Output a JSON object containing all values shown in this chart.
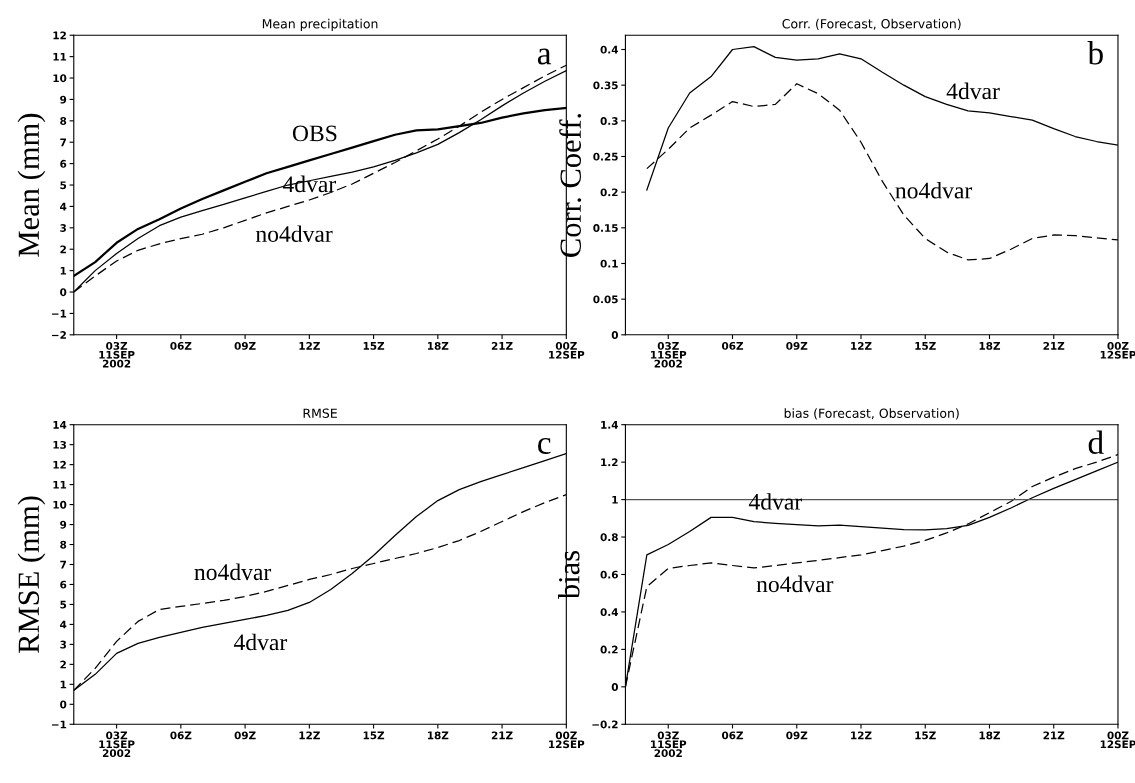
{
  "chart_data": [
    {
      "type": "line",
      "title": "Mean precipitation",
      "ylabel": "Mean (mm)",
      "xlim": [
        1,
        24
      ],
      "ylim": [
        -2,
        12
      ],
      "xticks": [
        {
          "value": 3,
          "label": "03Z\n11SEP\n2002"
        },
        {
          "value": 6,
          "label": "06Z"
        },
        {
          "value": 9,
          "label": "09Z"
        },
        {
          "value": 12,
          "label": "12Z"
        },
        {
          "value": 15,
          "label": "15Z"
        },
        {
          "value": 18,
          "label": "18Z"
        },
        {
          "value": 21,
          "label": "21Z"
        },
        {
          "value": 24,
          "label": "00Z\n12SEP"
        }
      ],
      "yticks": [
        {
          "value": -2,
          "label": "−2"
        },
        {
          "value": -1,
          "label": "−1"
        },
        0,
        1,
        2,
        3,
        4,
        5,
        6,
        7,
        8,
        9,
        10,
        11,
        12
      ],
      "x": [
        1,
        2,
        3,
        4,
        5,
        6,
        7,
        8,
        9,
        10,
        11,
        12,
        13,
        14,
        15,
        16,
        17,
        18,
        19,
        20,
        21,
        22,
        23,
        24
      ],
      "series": [
        {
          "name": "OBS",
          "color": "#000000",
          "line_style": "solid",
          "values": [
            0.75,
            1.4,
            2.3,
            2.95,
            3.4,
            3.9,
            4.35,
            4.75,
            5.15,
            5.55,
            5.85,
            6.15,
            6.45,
            6.75,
            7.05,
            7.35,
            7.55,
            7.6,
            7.75,
            7.9,
            8.15,
            8.35,
            8.5,
            8.6
          ]
        },
        {
          "name": "4dvar",
          "color": "#000000",
          "line_style": "solid",
          "values": [
            0,
            1.0,
            1.8,
            2.5,
            3.1,
            3.5,
            3.8,
            4.1,
            4.4,
            4.7,
            5.0,
            5.2,
            5.4,
            5.6,
            5.85,
            6.15,
            6.5,
            6.9,
            7.45,
            8.05,
            8.7,
            9.3,
            9.85,
            10.35
          ]
        },
        {
          "name": "no4dvar",
          "color": "#000000",
          "line_style": "dashed",
          "values": [
            0,
            0.75,
            1.45,
            1.95,
            2.25,
            2.5,
            2.7,
            3.0,
            3.35,
            3.7,
            4.0,
            4.3,
            4.65,
            5.05,
            5.55,
            6.05,
            6.6,
            7.15,
            7.75,
            8.4,
            9.0,
            9.55,
            10.1,
            10.6
          ]
        }
      ],
      "annotations": [
        "a"
      ]
    },
    {
      "type": "line",
      "title": "Corr. (Forecast, Observation)",
      "ylabel": "Corr. Coeff.",
      "xlim": [
        1,
        24
      ],
      "ylim": [
        0,
        0.42
      ],
      "xticks": [
        {
          "value": 3,
          "label": "03Z\n11SEP\n2002"
        },
        {
          "value": 6,
          "label": "06Z"
        },
        {
          "value": 9,
          "label": "09Z"
        },
        {
          "value": 12,
          "label": "12Z"
        },
        {
          "value": 15,
          "label": "15Z"
        },
        {
          "value": 18,
          "label": "18Z"
        },
        {
          "value": 21,
          "label": "21Z"
        },
        {
          "value": 24,
          "label": "00Z\n12SEP"
        }
      ],
      "yticks": [
        0,
        0.05,
        0.1,
        0.15,
        0.2,
        0.25,
        0.3,
        0.35,
        0.4
      ],
      "x": [
        2,
        3,
        4,
        5,
        6,
        7,
        8,
        9,
        10,
        11,
        12,
        13,
        14,
        15,
        16,
        17,
        18,
        19,
        20,
        21,
        22,
        23,
        24
      ],
      "series": [
        {
          "name": "4dvar",
          "color": "#000000",
          "line_style": "solid",
          "values": [
            0.203,
            0.29,
            0.339,
            0.362,
            0.4,
            0.404,
            0.389,
            0.385,
            0.387,
            0.394,
            0.387,
            0.368,
            0.35,
            0.334,
            0.323,
            0.314,
            0.311,
            0.306,
            0.301,
            0.289,
            0.278,
            0.271,
            0.266
          ]
        },
        {
          "name": "no4dvar",
          "color": "#000000",
          "line_style": "dashed",
          "values": [
            0.233,
            0.26,
            0.29,
            0.308,
            0.327,
            0.32,
            0.323,
            0.352,
            0.338,
            0.315,
            0.27,
            0.215,
            0.168,
            0.135,
            0.116,
            0.105,
            0.107,
            0.12,
            0.135,
            0.14,
            0.139,
            0.136,
            0.133
          ]
        }
      ],
      "annotations": [
        "b"
      ]
    },
    {
      "type": "line",
      "title": "RMSE",
      "ylabel": "RMSE (mm)",
      "xlim": [
        1,
        24
      ],
      "ylim": [
        -1,
        14
      ],
      "xticks": [
        {
          "value": 3,
          "label": "03Z\n11SEP\n2002"
        },
        {
          "value": 6,
          "label": "06Z"
        },
        {
          "value": 9,
          "label": "09Z"
        },
        {
          "value": 12,
          "label": "12Z"
        },
        {
          "value": 15,
          "label": "15Z"
        },
        {
          "value": 18,
          "label": "18Z"
        },
        {
          "value": 21,
          "label": "21Z"
        },
        {
          "value": 24,
          "label": "00Z\n12SEP"
        }
      ],
      "yticks": [
        {
          "value": -1,
          "label": "−1"
        },
        0,
        1,
        2,
        3,
        4,
        5,
        6,
        7,
        8,
        9,
        10,
        11,
        12,
        13,
        14
      ],
      "x": [
        1,
        2,
        3,
        4,
        5,
        6,
        7,
        8,
        9,
        10,
        11,
        12,
        13,
        14,
        15,
        16,
        17,
        18,
        19,
        20,
        21,
        22,
        23,
        24
      ],
      "series": [
        {
          "name": "4dvar",
          "color": "#000000",
          "line_style": "solid",
          "values": [
            0.7,
            1.5,
            2.55,
            3.05,
            3.35,
            3.6,
            3.85,
            4.05,
            4.25,
            4.45,
            4.7,
            5.1,
            5.75,
            6.55,
            7.45,
            8.45,
            9.4,
            10.2,
            10.75,
            11.15,
            11.5,
            11.85,
            12.2,
            12.55
          ]
        },
        {
          "name": "no4dvar",
          "color": "#000000",
          "line_style": "dashed",
          "values": [
            0.7,
            1.8,
            3.15,
            4.15,
            4.75,
            4.9,
            5.05,
            5.2,
            5.4,
            5.65,
            5.95,
            6.25,
            6.5,
            6.8,
            7.05,
            7.3,
            7.55,
            7.85,
            8.2,
            8.65,
            9.15,
            9.65,
            10.1,
            10.5
          ]
        }
      ],
      "annotations": [
        "c"
      ]
    },
    {
      "type": "line",
      "title": "bias (Forecast, Observation)",
      "ylabel": "bias",
      "xlim": [
        1,
        24
      ],
      "ylim": [
        -0.2,
        1.4
      ],
      "xticks": [
        {
          "value": 3,
          "label": "03Z\n11SEP\n2002"
        },
        {
          "value": 6,
          "label": "06Z"
        },
        {
          "value": 9,
          "label": "09Z"
        },
        {
          "value": 12,
          "label": "12Z"
        },
        {
          "value": 15,
          "label": "15Z"
        },
        {
          "value": 18,
          "label": "18Z"
        },
        {
          "value": 21,
          "label": "21Z"
        },
        {
          "value": 24,
          "label": "00Z\n12SEP"
        }
      ],
      "yticks": [
        {
          "value": -0.2,
          "label": "−0.2"
        },
        0,
        0.2,
        0.4,
        0.6,
        0.8,
        1,
        1.2,
        1.4
      ],
      "x": [
        1,
        2,
        3,
        4,
        5,
        6,
        7,
        8,
        9,
        10,
        11,
        12,
        13,
        14,
        15,
        16,
        17,
        18,
        19,
        20,
        21,
        22,
        23,
        24
      ],
      "series": [
        {
          "name": "4dvar",
          "color": "#000000",
          "line_style": "solid",
          "values": [
            0,
            0.705,
            0.76,
            0.83,
            0.905,
            0.905,
            0.882,
            0.873,
            0.866,
            0.86,
            0.864,
            0.856,
            0.848,
            0.84,
            0.838,
            0.845,
            0.862,
            0.905,
            0.955,
            1.01,
            1.06,
            1.107,
            1.153,
            1.2
          ]
        },
        {
          "name": "no4dvar",
          "color": "#000000",
          "line_style": "dashed",
          "values": [
            0,
            0.535,
            0.632,
            0.648,
            0.662,
            0.648,
            0.635,
            0.648,
            0.662,
            0.675,
            0.69,
            0.705,
            0.728,
            0.752,
            0.782,
            0.822,
            0.87,
            0.93,
            0.99,
            1.07,
            1.12,
            1.165,
            1.2,
            1.24
          ]
        }
      ],
      "ref_lines": [
        {
          "axis": "y",
          "value": 1,
          "color": "#555555"
        }
      ],
      "annotations": [
        "d"
      ]
    }
  ]
}
